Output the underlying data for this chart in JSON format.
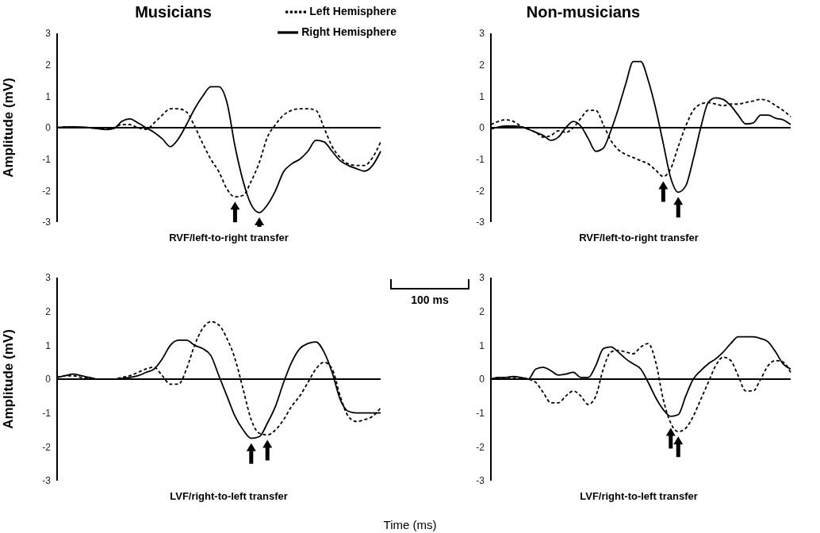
{
  "chart_data": [
    {
      "type": "line",
      "title": "Musicians",
      "xlabel": "RVF/left-to-right transfer",
      "ylabel": "Amplitude (mV)",
      "legend": "top right",
      "annotations": [
        "100 ms"
      ],
      "categories": [
        null,
        null,
        null,
        null,
        null,
        null,
        null,
        null,
        null,
        null,
        null,
        null,
        null,
        null,
        null,
        null,
        null,
        null,
        null,
        null,
        null,
        null,
        null,
        null,
        null,
        null,
        null,
        null,
        null,
        null,
        null,
        null,
        null,
        null,
        null,
        null,
        null,
        null,
        null,
        null,
        null
      ],
      "ylim": [
        -3,
        3
      ],
      "yticks": [
        -3,
        -2,
        -1,
        0,
        1,
        2,
        3
      ],
      "ref_lines": [
        {
          "axis": "y",
          "value": 0,
          "color": "#000000"
        }
      ],
      "series": [
        {
          "name": "Left Hemisphere",
          "color": "#000000",
          "line_style": "dashed",
          "values": [
            0,
            0.03,
            0.02,
            0,
            0,
            -0.03,
            -0.05,
            0,
            0.1,
            0.1,
            0,
            -0.05,
            0.15,
            0.4,
            0.6,
            0.6,
            0.5,
            0.05,
            -0.5,
            -1.0,
            -1.4,
            -1.95,
            -2.2,
            -2.15,
            -1.7,
            -1.1,
            -0.3,
            0.1,
            0.4,
            0.55,
            0.6,
            0.6,
            0.55,
            0.0,
            -0.6,
            -0.95,
            -1.15,
            -1.2,
            -1.2,
            -0.95,
            -0.45
          ]
        },
        {
          "name": "Right Hemisphere",
          "color": "#000000",
          "line_style": "solid",
          "values": [
            0,
            0.02,
            0.03,
            0.02,
            0,
            -0.03,
            -0.06,
            -0.03,
            0.2,
            0.28,
            0.15,
            0,
            -0.15,
            -0.35,
            -0.6,
            -0.35,
            0.1,
            0.6,
            1.0,
            1.3,
            1.3,
            0.8,
            -0.6,
            -1.7,
            -2.45,
            -2.7,
            -2.45,
            -2.0,
            -1.4,
            -1.15,
            -1.0,
            -0.75,
            -0.4,
            -0.45,
            -0.75,
            -1.05,
            -1.2,
            -1.3,
            -1.38,
            -1.2,
            -0.75
          ]
        }
      ]
    },
    {
      "type": "line",
      "title": "Non-musicians",
      "xlabel": "RVF/left-to-right transfer",
      "categories": [
        null,
        null,
        null,
        null,
        null,
        null,
        null,
        null,
        null,
        null,
        null,
        null,
        null,
        null,
        null,
        null,
        null,
        null,
        null,
        null,
        null,
        null,
        null,
        null,
        null,
        null,
        null,
        null,
        null,
        null,
        null,
        null,
        null,
        null,
        null,
        null,
        null,
        null,
        null,
        null,
        null
      ],
      "ylim": [
        -3,
        3
      ],
      "yticks": [
        -3,
        -2,
        -1,
        0,
        1,
        2,
        3
      ],
      "ref_lines": [
        {
          "axis": "y",
          "value": 0,
          "color": "#000000"
        }
      ],
      "series": [
        {
          "color": "#000000",
          "line_style": "dashed",
          "values": [
            0.1,
            0.2,
            0.25,
            0.2,
            0.05,
            -0.05,
            -0.15,
            -0.3,
            -0.25,
            -0.1,
            -0.15,
            0,
            0.3,
            0.55,
            0.55,
            0.1,
            -0.4,
            -0.7,
            -0.85,
            -0.95,
            -1.05,
            -1.15,
            -1.35,
            -1.55,
            -1.3,
            -0.6,
            0.05,
            0.55,
            0.75,
            0.8,
            0.75,
            0.7,
            0.75,
            0.75,
            0.8,
            0.85,
            0.9,
            0.85,
            0.7,
            0.55,
            0.35
          ]
        },
        {
          "color": "#000000",
          "line_style": "solid",
          "values": [
            -0.05,
            0.02,
            0.05,
            0.05,
            0.03,
            -0.05,
            -0.15,
            -0.25,
            -0.4,
            -0.3,
            0,
            0.2,
            0.05,
            -0.35,
            -0.75,
            -0.65,
            -0.1,
            0.6,
            1.4,
            2.1,
            2.1,
            1.5,
            0.6,
            -0.5,
            -1.6,
            -2.05,
            -1.85,
            -1.0,
            0,
            0.8,
            0.95,
            0.9,
            0.7,
            0.4,
            0.12,
            0.15,
            0.4,
            0.4,
            0.3,
            0.25,
            0.1
          ]
        }
      ]
    },
    {
      "type": "line",
      "xlabel": "LVF/right-to-left transfer",
      "ylabel": "Amplitude (mV)",
      "annotations": [
        "Time (ms)"
      ],
      "categories": [
        null,
        null,
        null,
        null,
        null,
        null,
        null,
        null,
        null,
        null,
        null,
        null,
        null,
        null,
        null,
        null,
        null,
        null,
        null,
        null,
        null,
        null,
        null,
        null,
        null,
        null,
        null,
        null,
        null,
        null,
        null,
        null,
        null,
        null,
        null,
        null,
        null,
        null,
        null,
        null,
        null
      ],
      "ylim": [
        -3,
        3
      ],
      "yticks": [
        -3,
        -2,
        -1,
        0,
        1,
        2,
        3
      ],
      "ref_lines": [
        {
          "axis": "y",
          "value": 0,
          "color": "#000000"
        }
      ],
      "series": [
        {
          "color": "#000000",
          "line_style": "dashed",
          "values": [
            0.05,
            0.1,
            0.1,
            0.05,
            0.02,
            0,
            0,
            0,
            0.05,
            0.1,
            0.2,
            0.3,
            0.35,
            0.1,
            -0.15,
            -0.15,
            0.3,
            1.0,
            1.5,
            1.7,
            1.6,
            1.2,
            0.6,
            -0.3,
            -1.2,
            -1.6,
            -1.65,
            -1.5,
            -1.2,
            -0.8,
            -0.5,
            -0.1,
            0.3,
            0.5,
            0.3,
            -0.5,
            -1.1,
            -1.25,
            -1.2,
            -1.1,
            -0.85
          ]
        },
        {
          "color": "#000000",
          "line_style": "solid",
          "values": [
            0.05,
            0.1,
            0.15,
            0.1,
            0.05,
            0,
            0,
            0,
            0.02,
            0.05,
            0.1,
            0.2,
            0.3,
            0.6,
            1.0,
            1.15,
            1.15,
            1.0,
            0.9,
            0.7,
            0.1,
            -0.5,
            -1.1,
            -1.5,
            -1.75,
            -1.7,
            -1.3,
            -0.8,
            -0.1,
            0.5,
            0.9,
            1.05,
            1.1,
            0.8,
            0.2,
            -0.6,
            -0.95,
            -1.0,
            -1.0,
            -1.0,
            -1.0
          ]
        }
      ]
    },
    {
      "type": "line",
      "xlabel": "LVF/right-to-left transfer",
      "categories": [
        null,
        null,
        null,
        null,
        null,
        null,
        null,
        null,
        null,
        null,
        null,
        null,
        null,
        null,
        null,
        null,
        null,
        null,
        null,
        null,
        null,
        null,
        null,
        null,
        null,
        null,
        null,
        null,
        null,
        null,
        null,
        null,
        null,
        null,
        null,
        null,
        null,
        null,
        null,
        null,
        null
      ],
      "ylim": [
        -3,
        3
      ],
      "yticks": [
        -3,
        -2,
        -1,
        0,
        1,
        2,
        3
      ],
      "ref_lines": [
        {
          "axis": "y",
          "value": 0,
          "color": "#000000"
        }
      ],
      "series": [
        {
          "color": "#000000",
          "line_style": "dashed",
          "values": [
            0,
            0.05,
            0.05,
            0.05,
            0.05,
            0,
            -0.1,
            -0.4,
            -0.7,
            -0.7,
            -0.5,
            -0.35,
            -0.5,
            -0.75,
            -0.5,
            0.3,
            0.8,
            0.85,
            0.8,
            0.75,
            0.95,
            1.05,
            0.5,
            -0.6,
            -1.3,
            -1.55,
            -1.45,
            -1.1,
            -0.6,
            -0.1,
            0.4,
            0.65,
            0.55,
            0.1,
            -0.35,
            -0.35,
            0.0,
            0.4,
            0.55,
            0.5,
            0.2
          ]
        },
        {
          "color": "#000000",
          "line_style": "solid",
          "values": [
            0,
            0.05,
            0.05,
            0.08,
            0.05,
            0,
            0.3,
            0.35,
            0.25,
            0.12,
            0.15,
            0.2,
            0.05,
            0.05,
            0.4,
            0.9,
            0.95,
            0.8,
            0.6,
            0.45,
            0.3,
            -0.1,
            -0.55,
            -0.9,
            -1.1,
            -1.05,
            -0.5,
            0,
            0.25,
            0.45,
            0.6,
            0.8,
            1.05,
            1.25,
            1.25,
            1.25,
            1.2,
            1.1,
            0.8,
            0.45,
            0.3
          ]
        }
      ]
    }
  ]
}
